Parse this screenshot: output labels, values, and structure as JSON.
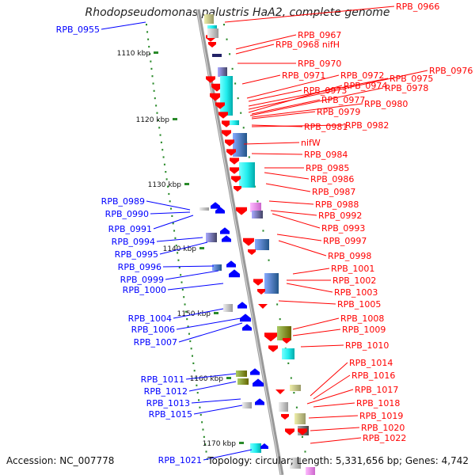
{
  "title": "Rhodopseudomonas palustris HaA2, complete genome",
  "footer": {
    "accession": "Accession: NC_007778",
    "summary": "Topology: circular; Length: 5,331,656 bp; Genes: 4,742"
  },
  "colors": {
    "forward": "#ff0000",
    "reverse": "#0000ff",
    "tick": "#2a8a2a",
    "backbone": "#999999"
  },
  "kbp_ticks": [
    "1110 kbp",
    "1120 kbp",
    "1130 kbp",
    "1140 kbp",
    "1150 kbp",
    "1160 kbp",
    "1170 kbp"
  ],
  "reverse_genes": [
    "RPB_0955",
    "RPB_0989",
    "RPB_0990",
    "RPB_0991",
    "RPB_0994",
    "RPB_0995",
    "RPB_0996",
    "RPB_0999",
    "RPB_1000",
    "RPB_1004",
    "RPB_1006",
    "RPB_1007",
    "RPB_1011",
    "RPB_1012",
    "RPB_1013",
    "RPB_1015",
    "RPB_1021"
  ],
  "forward_genes": [
    "RPB_0966",
    "RPB_0967",
    "RPB_0968_nifH",
    "RPB_0970",
    "RPB_0971",
    "RPB_0972",
    "RPB_0975",
    "RPB_0976",
    "RPB_0973",
    "RPB_0974",
    "RPB_0978",
    "RPB_0977",
    "RPB_0980",
    "RPB_0979",
    "RPB_0981",
    "RPB_0982",
    "nifW",
    "RPB_0984",
    "RPB_0985",
    "RPB_0986",
    "RPB_0987",
    "RPB_0988",
    "RPB_0992",
    "RPB_0993",
    "RPB_0997",
    "RPB_0998",
    "RPB_1001",
    "RPB_1002",
    "RPB_1003",
    "RPB_1005",
    "RPB_1008",
    "RPB_1009",
    "RPB_1010",
    "RPB_1014",
    "RPB_1016",
    "RPB_1017",
    "RPB_1018",
    "RPB_1019",
    "RPB_1020",
    "RPB_1022"
  ]
}
